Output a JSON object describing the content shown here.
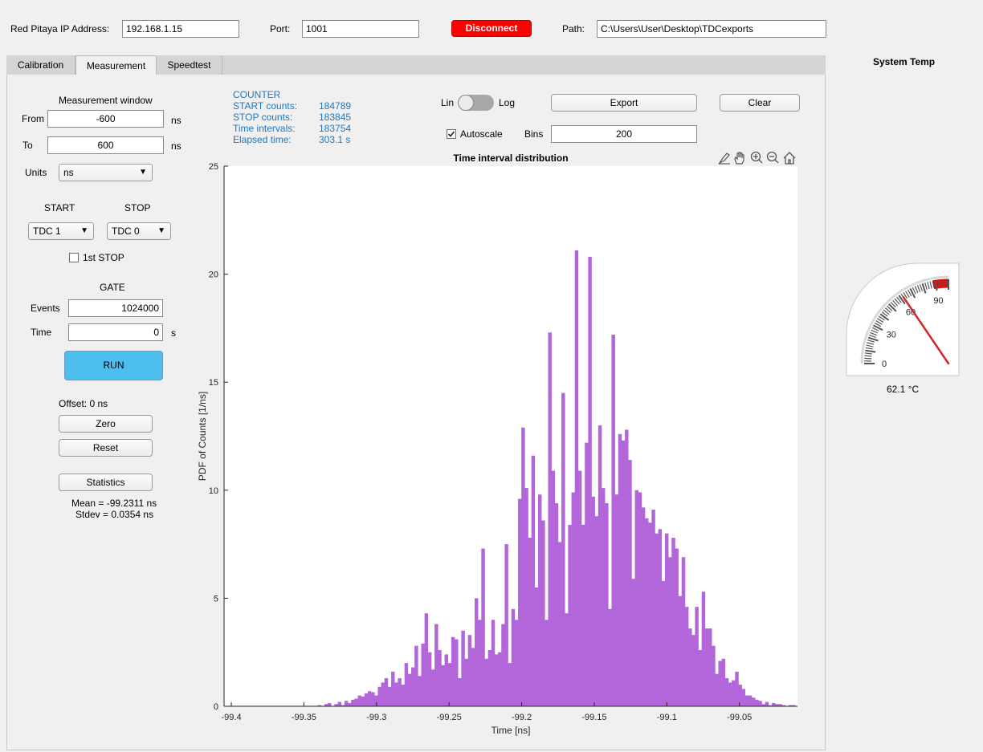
{
  "header": {
    "ip_label": "Red Pitaya IP Address:",
    "ip_value": "192.168.1.15",
    "port_label": "Port:",
    "port_value": "1001",
    "disconnect_label": "Disconnect",
    "disconnect_color": "#ff0000",
    "path_label": "Path:",
    "path_value": "C:\\Users\\User\\Desktop\\TDCexports"
  },
  "tabs": [
    {
      "label": "Calibration",
      "active": false
    },
    {
      "label": "Measurement",
      "active": true
    },
    {
      "label": "Speedtest",
      "active": false
    }
  ],
  "measurement": {
    "window_title": "Measurement window",
    "from_label": "From",
    "from_value": "-600",
    "from_unit": "ns",
    "to_label": "To",
    "to_value": "600",
    "to_unit": "ns",
    "units_label": "Units",
    "units_value": "ns",
    "start_label": "START",
    "stop_label": "STOP",
    "start_value": "TDC 1",
    "stop_value": "TDC 0",
    "first_stop_label": "1st STOP",
    "gate_label": "GATE",
    "events_label": "Events",
    "events_value": "1024000",
    "time_label": "Time",
    "time_value": "0",
    "time_unit": "s",
    "run_label": "RUN",
    "run_color": "#4dbeee",
    "offset_text": "Offset: 0 ns",
    "zero_label": "Zero",
    "reset_label": "Reset",
    "statistics_label": "Statistics",
    "mean_text": "Mean = -99.2311 ns",
    "stdev_text": "Stdev = 0.0354 ns"
  },
  "counter": {
    "title": "COUNTER",
    "rows": [
      {
        "label": "START counts:",
        "value": "184789"
      },
      {
        "label": "STOP counts:",
        "value": "183845"
      },
      {
        "label": "Time intervals:",
        "value": "183754"
      },
      {
        "label": "Elapsed time:",
        "value": "303.1 s"
      }
    ],
    "color": "#1f77c0"
  },
  "controls": {
    "lin_label": "Lin",
    "log_label": "Log",
    "export_label": "Export",
    "clear_label": "Clear",
    "autoscale_label": "Autoscale",
    "autoscale_checked": true,
    "bins_label": "Bins",
    "bins_value": "200"
  },
  "toolbar_icons": [
    "brush-icon",
    "pan-icon",
    "zoom-in-icon",
    "zoom-out-icon",
    "home-icon"
  ],
  "chart_data": {
    "type": "bar",
    "title": "Time interval distribution",
    "xlabel": "Time [ns]",
    "ylabel": "PDF of Counts [1/ns]",
    "xlim": [
      -99.405,
      -99.01
    ],
    "ylim": [
      0,
      25
    ],
    "xticks": [
      -99.4,
      -99.35,
      -99.3,
      -99.25,
      -99.2,
      -99.15,
      -99.1,
      -99.05
    ],
    "xtick_labels": [
      "-99.4",
      "-99.35",
      "-99.3",
      "-99.25",
      "-99.2",
      "-99.15",
      "-99.1",
      "-99.05"
    ],
    "yticks": [
      0,
      5,
      10,
      15,
      20,
      25
    ],
    "ytick_labels": [
      "0",
      "5",
      "10",
      "15",
      "20",
      "25"
    ],
    "bar_color": "#b266d9",
    "bin_width": 0.0023,
    "bin_start": -99.3405,
    "values": [
      0.05,
      0.0,
      0.1,
      0.15,
      0.0,
      0.1,
      0.2,
      0.05,
      0.25,
      0.15,
      0.3,
      0.35,
      0.5,
      0.45,
      0.6,
      0.7,
      0.65,
      0.5,
      0.9,
      1.1,
      1.3,
      0.9,
      1.6,
      1.1,
      1.3,
      1.0,
      2.0,
      1.5,
      1.8,
      2.8,
      1.4,
      2.9,
      4.3,
      2.5,
      1.7,
      3.8,
      2.6,
      1.9,
      2.4,
      2.0,
      3.2,
      3.1,
      1.3,
      3.5,
      2.2,
      3.3,
      2.7,
      5.0,
      4.0,
      7.3,
      2.2,
      2.6,
      4.0,
      2.4,
      2.5,
      3.8,
      7.5,
      2.0,
      4.5,
      4.0,
      9.6,
      12.9,
      10.1,
      7.8,
      11.6,
      5.5,
      9.8,
      8.6,
      4.0,
      17.3,
      10.9,
      9.4,
      7.6,
      14.5,
      4.3,
      8.4,
      9.9,
      21.1,
      10.9,
      8.4,
      12.2,
      20.8,
      9.7,
      8.8,
      13.0,
      10.1,
      9.4,
      4.5,
      17.2,
      9.8,
      12.6,
      12.3,
      12.8,
      11.4,
      5.9,
      10.0,
      9.9,
      9.2,
      8.7,
      8.5,
      9.1,
      8.0,
      8.2,
      5.8,
      8.0,
      6.9,
      7.8,
      7.3,
      5.1,
      6.9,
      4.6,
      3.6,
      3.3,
      4.6,
      2.6,
      5.3,
      3.6,
      3.6,
      2.8,
      1.5,
      2.1,
      2.2,
      1.3,
      1.1,
      1.2,
      1.6,
      1.0,
      0.8,
      0.5,
      0.5,
      0.4,
      0.3,
      0.25,
      0.1,
      0.2,
      0.05,
      0.15,
      0.1,
      0.1,
      0.05,
      0.0,
      0.05,
      0.05
    ]
  },
  "temp_panel": {
    "title": "System Temp",
    "scale_labels": [
      "0",
      "30",
      "60",
      "90"
    ],
    "value": 62.1,
    "value_text": "62.1 °C",
    "danger_color": "#ff0000",
    "needle_color": "#d62728"
  }
}
